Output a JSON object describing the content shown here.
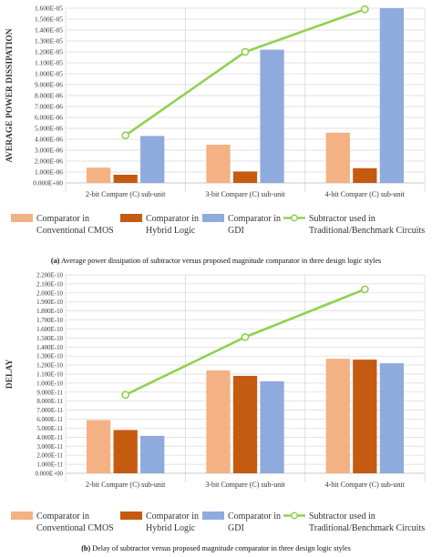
{
  "charts": [
    {
      "caption_tag": "(a)",
      "caption": "Average power dissipation of subtractor versus proposed magnitude comparator in three design logic styles"
    },
    {
      "caption_tag": "(b)",
      "caption": "Delay of subtractor versus proposed magnitude comparator in three design logic styles"
    }
  ],
  "colors": {
    "cmos": "#f4b183",
    "hybrid": "#c55a11",
    "gdi": "#8faadc",
    "subtractor": "#92d050",
    "grid": "#d9d9d9"
  },
  "chart_data": [
    {
      "type": "bar",
      "ylabel": "AVERAGE POWER DISSIPATION",
      "xlabel": "",
      "categories": [
        "2-bit Compare (C) sub-unit",
        "3-bit Compare (C) sub-unit",
        "4-bit Compare (C) sub-unit"
      ],
      "ylim": [
        0,
        1.6e-05
      ],
      "yticks": [
        "0.000E+00",
        "1.000E-06",
        "2.000E-06",
        "3.000E-06",
        "4.000E-06",
        "5.000E-06",
        "6.000E-06",
        "7.000E-06",
        "8.000E-06",
        "9.000E-06",
        "1.000E-05",
        "1.100E-05",
        "1.200E-05",
        "1.300E-05",
        "1.400E-05",
        "1.500E-05",
        "1.600E-05"
      ],
      "grid": true,
      "legend_position": "bottom",
      "series": [
        {
          "name": "Comparator in Conventional CMOS",
          "legend_lines": [
            "Comparator in",
            "Conventional CMOS"
          ],
          "kind": "bar",
          "color": "#f4b183",
          "values": [
            1.4e-06,
            3.5e-06,
            4.6e-06
          ]
        },
        {
          "name": "Comparator in Hybrid Logic",
          "legend_lines": [
            "Comparator in",
            "Hybrid Logic"
          ],
          "kind": "bar",
          "color": "#c55a11",
          "values": [
            7.5e-07,
            1.05e-06,
            1.35e-06
          ]
        },
        {
          "name": "Comparator in GDI",
          "legend_lines": [
            "Comparator in",
            "GDI"
          ],
          "kind": "bar",
          "color": "#8faadc",
          "values": [
            4.3e-06,
            1.22e-05,
            1.62e-05
          ]
        },
        {
          "name": "Subtractor used in Traditional/Benchmark Circuits",
          "legend_lines": [
            "Subtractor used in",
            "Traditional/Benchmark Circuits"
          ],
          "kind": "line",
          "color": "#92d050",
          "values": [
            4.35e-06,
            1.2e-05,
            1.59e-05
          ]
        }
      ]
    },
    {
      "type": "bar",
      "ylabel": "DELAY",
      "xlabel": "",
      "categories": [
        "2-bit Compare (C) sub-unit",
        "3-bit Compare (C) sub-unit",
        "4-bit Compare (C) sub-unit"
      ],
      "ylim": [
        0,
        2.2e-10
      ],
      "yticks": [
        "0.000E+00",
        "1.000E-11",
        "2.000E-11",
        "3.000E-11",
        "4.000E-11",
        "5.000E-11",
        "6.000E-11",
        "7.000E-11",
        "8.000E-11",
        "9.000E-11",
        "1.000E-10",
        "1.100E-10",
        "1.200E-10",
        "1.300E-10",
        "1.400E-10",
        "1.500E-10",
        "1.600E-10",
        "1.700E-10",
        "1.800E-10",
        "1.900E-10",
        "2.000E-10",
        "2.100E-10",
        "2.200E-10"
      ],
      "grid": true,
      "legend_position": "bottom",
      "series": [
        {
          "name": "Comparator in Conventional CMOS",
          "legend_lines": [
            "Comparator in",
            "Conventional CMOS"
          ],
          "kind": "bar",
          "color": "#f4b183",
          "values": [
            5.9e-11,
            1.14e-10,
            1.27e-10
          ]
        },
        {
          "name": "Comparator in Hybrid Logic",
          "legend_lines": [
            "Comparator in",
            "Hybrid Logic"
          ],
          "kind": "bar",
          "color": "#c55a11",
          "values": [
            4.8e-11,
            1.08e-10,
            1.26e-10
          ]
        },
        {
          "name": "Comparator in GDI",
          "legend_lines": [
            "Comparator in",
            "GDI"
          ],
          "kind": "bar",
          "color": "#8faadc",
          "values": [
            4.15e-11,
            1.02e-10,
            1.22e-10
          ]
        },
        {
          "name": "Subtractor used in Traditional/Benchmark Circuits",
          "legend_lines": [
            "Subtractor used in",
            "Traditional/Benchmark Circuits"
          ],
          "kind": "line",
          "color": "#92d050",
          "values": [
            8.7e-11,
            1.51e-10,
            2.04e-10
          ]
        }
      ]
    }
  ]
}
